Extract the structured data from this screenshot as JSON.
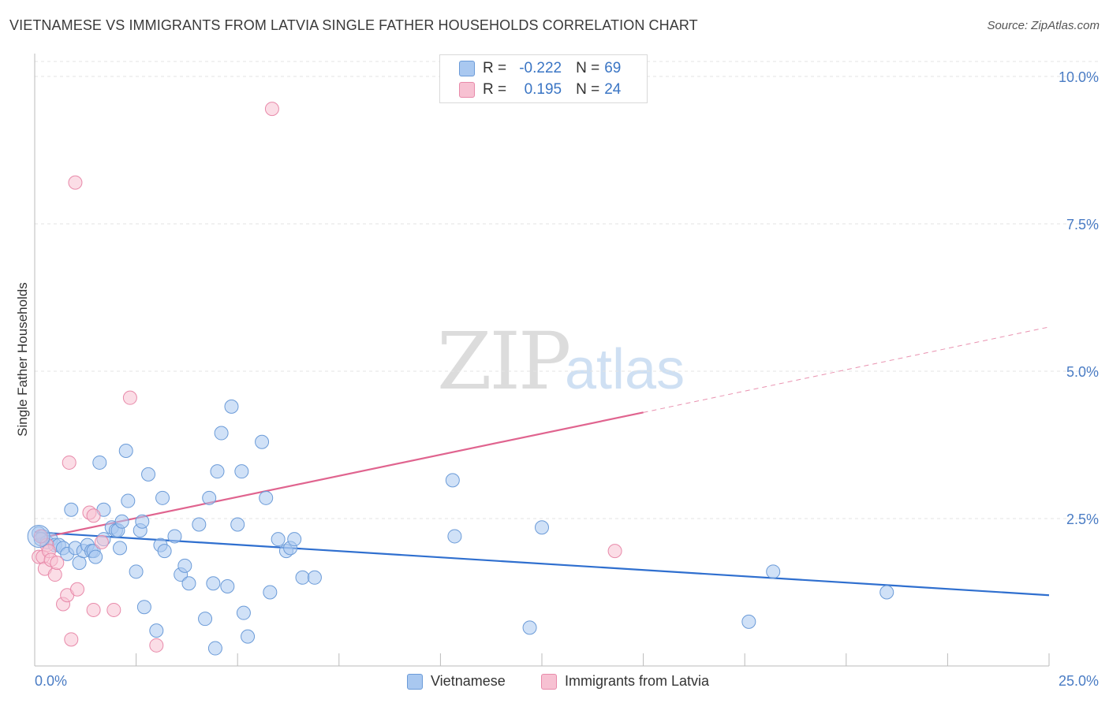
{
  "header": {
    "title": "VIETNAMESE VS IMMIGRANTS FROM LATVIA SINGLE FATHER HOUSEHOLDS CORRELATION CHART",
    "source": "Source: ZipAtlas.com"
  },
  "watermark": {
    "zip": "ZIP",
    "atlas": "atlas"
  },
  "legend": {
    "rows": [
      {
        "r_label": "R =",
        "r_value": "-0.222",
        "n_label": "N =",
        "n_value": "69",
        "color": "#a9c8f0",
        "border": "#6b9bd8"
      },
      {
        "r_label": "R =",
        "r_value": "0.195",
        "n_label": "N =",
        "n_value": "24",
        "color": "#f7c1d2",
        "border": "#e88aaa"
      }
    ]
  },
  "bottom_legend": {
    "items": [
      {
        "label": "Vietnamese",
        "color": "#a9c8f0",
        "border": "#6b9bd8"
      },
      {
        "label": "Immigrants from Latvia",
        "color": "#f7c1d2",
        "border": "#e88aaa"
      }
    ]
  },
  "chart_data": {
    "type": "scatter",
    "title": "VIETNAMESE VS IMMIGRANTS FROM LATVIA SINGLE FATHER HOUSEHOLDS CORRELATION CHART",
    "xlabel": "",
    "ylabel": "Single Father Households",
    "xlim": [
      0,
      25
    ],
    "ylim": [
      0,
      10
    ],
    "x_tick_labels": [
      "0.0%",
      "25.0%"
    ],
    "y_ticks": [
      2.5,
      5.0,
      7.5,
      10.0
    ],
    "y_tick_labels": [
      "2.5%",
      "5.0%",
      "7.5%",
      "10.0%"
    ],
    "grid": true,
    "legend_position": "top-center",
    "series": [
      {
        "name": "Vietnamese",
        "color": "#a9c8f0",
        "stroke": "#6b9bd8",
        "line_color": "#2f6fcf",
        "trend": {
          "x0": 0,
          "y0": 2.27,
          "x1": 25,
          "y1": 1.2
        },
        "points": [
          [
            0.1,
            2.25
          ],
          [
            0.2,
            2.2
          ],
          [
            0.3,
            2.1
          ],
          [
            0.4,
            2.15
          ],
          [
            0.5,
            2.05
          ],
          [
            0.6,
            2.05
          ],
          [
            0.7,
            2.0
          ],
          [
            0.8,
            1.9
          ],
          [
            0.9,
            2.65
          ],
          [
            1.0,
            2.0
          ],
          [
            1.1,
            1.75
          ],
          [
            1.2,
            1.95
          ],
          [
            1.3,
            2.05
          ],
          [
            1.4,
            1.95
          ],
          [
            1.45,
            1.95
          ],
          [
            1.5,
            1.85
          ],
          [
            1.6,
            3.45
          ],
          [
            1.7,
            2.15
          ],
          [
            1.7,
            2.65
          ],
          [
            1.9,
            2.35
          ],
          [
            2.0,
            2.3
          ],
          [
            2.05,
            2.3
          ],
          [
            2.1,
            2.0
          ],
          [
            2.15,
            2.45
          ],
          [
            2.25,
            3.65
          ],
          [
            2.3,
            2.8
          ],
          [
            2.5,
            1.6
          ],
          [
            2.6,
            2.3
          ],
          [
            2.65,
            2.45
          ],
          [
            2.7,
            1.0
          ],
          [
            2.8,
            3.25
          ],
          [
            3.0,
            0.6
          ],
          [
            3.1,
            2.05
          ],
          [
            3.15,
            2.85
          ],
          [
            3.2,
            1.95
          ],
          [
            3.45,
            2.2
          ],
          [
            3.6,
            1.55
          ],
          [
            3.7,
            1.7
          ],
          [
            3.8,
            1.4
          ],
          [
            4.05,
            2.4
          ],
          [
            4.2,
            0.8
          ],
          [
            4.3,
            2.85
          ],
          [
            4.4,
            1.4
          ],
          [
            4.45,
            0.3
          ],
          [
            4.5,
            3.3
          ],
          [
            4.6,
            3.95
          ],
          [
            4.75,
            1.35
          ],
          [
            4.85,
            4.4
          ],
          [
            5.0,
            2.4
          ],
          [
            5.1,
            3.3
          ],
          [
            5.15,
            0.9
          ],
          [
            5.25,
            0.5
          ],
          [
            5.6,
            3.8
          ],
          [
            5.7,
            2.85
          ],
          [
            5.8,
            1.25
          ],
          [
            6.0,
            2.15
          ],
          [
            6.2,
            1.95
          ],
          [
            6.3,
            2.0
          ],
          [
            6.4,
            2.15
          ],
          [
            6.6,
            1.5
          ],
          [
            6.9,
            1.5
          ],
          [
            10.3,
            3.15
          ],
          [
            10.35,
            2.2
          ],
          [
            12.2,
            0.65
          ],
          [
            12.5,
            2.35
          ],
          [
            17.6,
            0.75
          ],
          [
            18.2,
            1.6
          ],
          [
            21.0,
            1.25
          ],
          [
            0.15,
            2.15
          ]
        ]
      },
      {
        "name": "Immigrants from Latvia",
        "color": "#f7c1d2",
        "stroke": "#e88aaa",
        "line_color": "#e0648f",
        "trend": {
          "x0": 0,
          "y0": 2.15,
          "x1": 15,
          "y1": 4.3
        },
        "trend_dashed": {
          "x0": 15,
          "y0": 4.3,
          "x1": 25,
          "y1": 5.75
        },
        "points": [
          [
            0.1,
            1.85
          ],
          [
            0.2,
            1.85
          ],
          [
            0.25,
            1.65
          ],
          [
            0.3,
            2.05
          ],
          [
            0.35,
            1.95
          ],
          [
            0.4,
            1.8
          ],
          [
            0.5,
            1.55
          ],
          [
            0.55,
            1.75
          ],
          [
            0.7,
            1.05
          ],
          [
            0.8,
            1.2
          ],
          [
            0.85,
            3.45
          ],
          [
            0.9,
            0.45
          ],
          [
            1.0,
            8.2
          ],
          [
            1.05,
            1.3
          ],
          [
            1.35,
            2.6
          ],
          [
            1.45,
            2.55
          ],
          [
            1.45,
            0.95
          ],
          [
            1.65,
            2.1
          ],
          [
            1.95,
            0.95
          ],
          [
            2.35,
            4.55
          ],
          [
            3.0,
            0.35
          ],
          [
            5.85,
            9.45
          ],
          [
            14.3,
            1.95
          ],
          [
            0.15,
            2.2
          ]
        ]
      }
    ]
  }
}
